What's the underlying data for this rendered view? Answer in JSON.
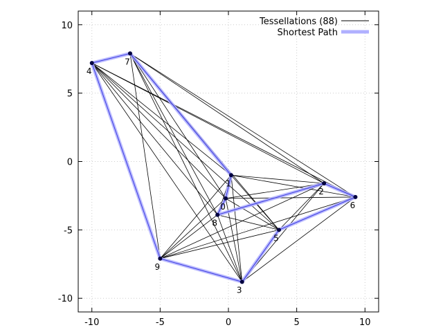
{
  "chart_data": {
    "type": "scatter",
    "title": "",
    "xlabel": "",
    "ylabel": "",
    "xlim": [
      -11,
      11
    ],
    "ylim": [
      -11,
      11
    ],
    "x_ticks": [
      -10,
      -5,
      0,
      5,
      10
    ],
    "y_ticks": [
      -10,
      -5,
      0,
      5,
      10
    ],
    "grid": true,
    "legend_position": "top-right",
    "colors": {
      "edge": "#000000",
      "path": "#b0b0ff",
      "path_core": "#3a3ae0",
      "node": "#000040",
      "grid": "#cccccc"
    },
    "nodes": [
      {
        "id": "1",
        "x": 0.2,
        "y": -1.0
      },
      {
        "id": "2",
        "x": 7.0,
        "y": -1.6
      },
      {
        "id": "3",
        "x": 1.0,
        "y": -8.8
      },
      {
        "id": "4",
        "x": -10.0,
        "y": 7.2
      },
      {
        "id": "5",
        "x": 3.7,
        "y": -5.0
      },
      {
        "id": "6",
        "x": 9.3,
        "y": -2.6
      },
      {
        "id": "7",
        "x": -7.2,
        "y": 7.9
      },
      {
        "id": "8",
        "x": -0.8,
        "y": -3.9
      },
      {
        "id": "9",
        "x": -5.0,
        "y": -7.1
      },
      {
        "id": "0",
        "x": -0.2,
        "y": -2.7
      }
    ],
    "series": [
      {
        "name": "Tessellations (88)"
      },
      {
        "name": "Shortest Path"
      }
    ],
    "edges": [
      [
        "7",
        "1"
      ],
      [
        "7",
        "0"
      ],
      [
        "7",
        "8"
      ],
      [
        "7",
        "5"
      ],
      [
        "7",
        "3"
      ],
      [
        "7",
        "9"
      ],
      [
        "7",
        "2"
      ],
      [
        "7",
        "6"
      ],
      [
        "4",
        "1"
      ],
      [
        "4",
        "0"
      ],
      [
        "4",
        "8"
      ],
      [
        "4",
        "5"
      ],
      [
        "4",
        "3"
      ],
      [
        "4",
        "2"
      ],
      [
        "4",
        "6"
      ],
      [
        "1",
        "2"
      ],
      [
        "1",
        "6"
      ],
      [
        "1",
        "0"
      ],
      [
        "1",
        "8"
      ],
      [
        "1",
        "5"
      ],
      [
        "1",
        "3"
      ],
      [
        "1",
        "9"
      ],
      [
        "0",
        "2"
      ],
      [
        "0",
        "6"
      ],
      [
        "0",
        "5"
      ],
      [
        "0",
        "3"
      ],
      [
        "0",
        "9"
      ],
      [
        "8",
        "2"
      ],
      [
        "8",
        "5"
      ],
      [
        "8",
        "3"
      ],
      [
        "8",
        "9"
      ],
      [
        "9",
        "2"
      ],
      [
        "9",
        "5"
      ],
      [
        "9",
        "6"
      ],
      [
        "5",
        "2"
      ],
      [
        "5",
        "6"
      ],
      [
        "5",
        "3"
      ],
      [
        "3",
        "2"
      ],
      [
        "3",
        "6"
      ]
    ],
    "shortest_path": [
      "6",
      "2",
      "8",
      "0",
      "1",
      "7",
      "4",
      "9",
      "3",
      "5",
      "6"
    ]
  }
}
